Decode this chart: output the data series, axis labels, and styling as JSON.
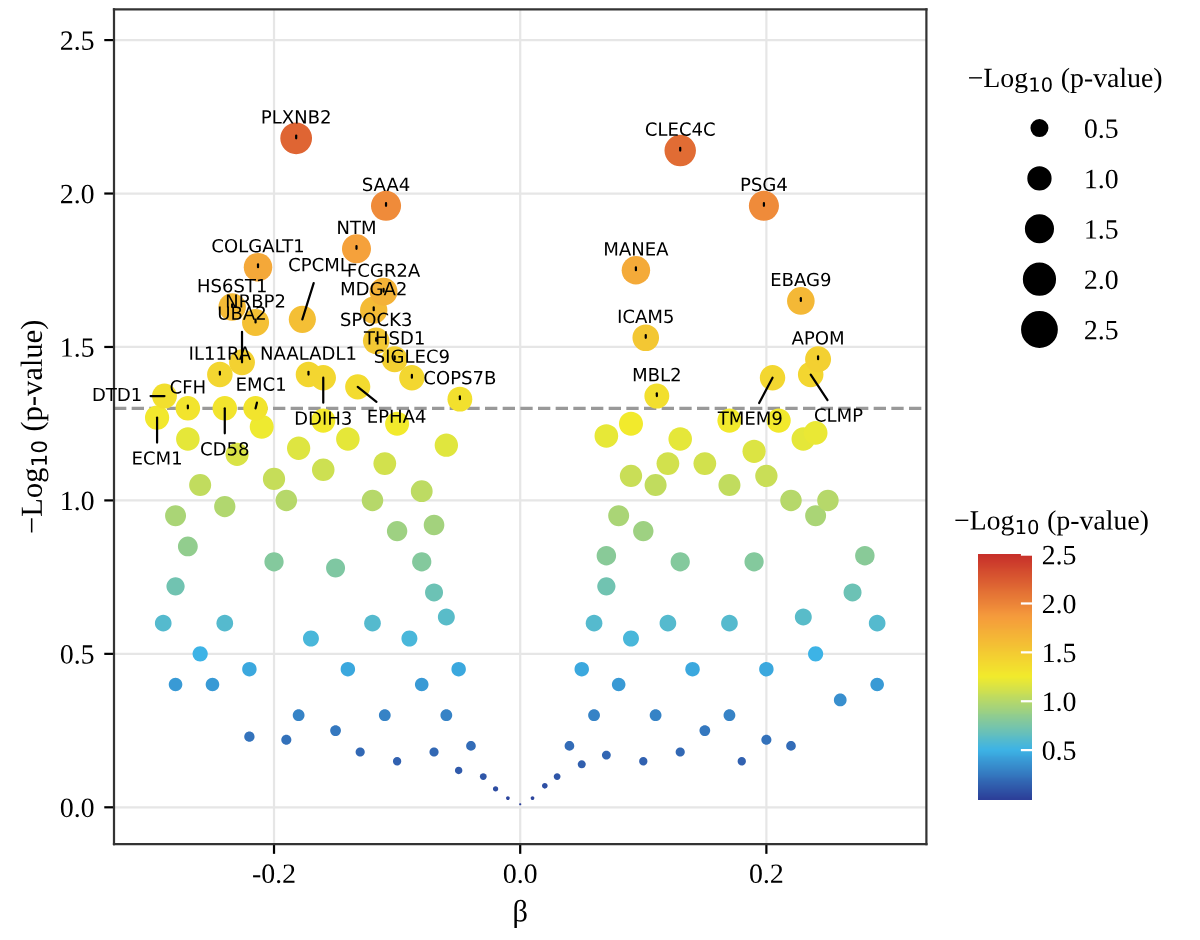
{
  "chart_data": {
    "type": "bubble",
    "xlabel": "β",
    "ylabel": "−Log$_{10}$ (p-value)",
    "legend_title": "−Log$_{10}$ (p-value)",
    "clabel": "−Log$_{10}$ (p-value)",
    "xlim": [
      -0.33,
      0.33
    ],
    "ylim": [
      -0.12,
      2.6
    ],
    "xticks": [
      {
        "value": -0.2,
        "label": "-0.2"
      },
      {
        "value": 0.0,
        "label": "0.0"
      },
      {
        "value": 0.2,
        "label": "0.2"
      }
    ],
    "yticks": [
      {
        "value": 0.0,
        "label": "0.0"
      },
      {
        "value": 0.5,
        "label": "0.5"
      },
      {
        "value": 1.0,
        "label": "1.0"
      },
      {
        "value": 1.5,
        "label": "1.5"
      },
      {
        "value": 2.0,
        "label": "2.0"
      },
      {
        "value": 2.5,
        "label": "2.5"
      }
    ],
    "grid": true,
    "marker": "circle",
    "size_legend": [
      {
        "value": 0.5,
        "label": "0.5"
      },
      {
        "value": 1.0,
        "label": "1.0"
      },
      {
        "value": 1.5,
        "label": "1.5"
      },
      {
        "value": 2.0,
        "label": "2.0"
      },
      {
        "value": 2.5,
        "label": "2.5"
      }
    ],
    "clim": [
      0.0,
      2.5
    ],
    "cticks": [
      {
        "value": 0.5,
        "label": "0.5"
      },
      {
        "value": 1.0,
        "label": "1.0"
      },
      {
        "value": 1.5,
        "label": "1.5"
      },
      {
        "value": 2.0,
        "label": "2.0"
      },
      {
        "value": 2.5,
        "label": "2.5"
      }
    ],
    "ref_lines": [
      {
        "axis": "y",
        "value": 1.3,
        "color": "#999999",
        "line_style": "dashed"
      }
    ],
    "series": [
      {
        "x": [
          0,
          -0.01,
          0.01,
          -0.02,
          0.02,
          -0.03,
          0.03,
          -0.05,
          0.05,
          -0.04,
          0.04,
          -0.07,
          0.07,
          -0.1,
          0.1,
          -0.13,
          0.13,
          -0.06,
          0.06,
          -0.08,
          0.08,
          -0.05,
          0.05,
          -0.11,
          0.11,
          -0.15,
          0.15,
          -0.18,
          0.17,
          -0.22,
          -0.19,
          0.18,
          0.2,
          0.22,
          -0.25,
          0.26,
          -0.28,
          0.29,
          -0.29,
          0.29,
          -0.26,
          0.24,
          -0.22,
          0.2,
          -0.14,
          0.14,
          -0.09,
          0.09,
          -0.06,
          0.06,
          -0.07,
          0.07,
          -0.12,
          0.12,
          -0.17,
          0.17,
          -0.24,
          0.23,
          -0.28,
          0.27,
          -0.27,
          0.28,
          -0.2,
          0.19,
          -0.15,
          0.13,
          -0.08,
          0.07,
          -0.1,
          0.1,
          -0.07,
          0.08,
          -0.28,
          0.24,
          -0.24,
          0.22,
          -0.19,
          0.17,
          -0.12,
          0.11,
          -0.08,
          0.09,
          -0.26,
          0.25,
          -0.2,
          0.2,
          -0.16,
          0.15,
          -0.11,
          0.12,
          -0.23,
          0.13,
          -0.18,
          0.19,
          -0.14,
          0.23,
          -0.06,
          0.07,
          -0.27,
          0.24,
          -0.21,
          0.09,
          -0.16,
          0.17,
          -0.1,
          0.21,
          -0.182,
          -0.109,
          -0.133,
          -0.213,
          -0.177,
          -0.234,
          -0.215,
          -0.119,
          -0.111,
          -0.117,
          -0.102,
          -0.088,
          -0.244,
          -0.226,
          -0.289,
          -0.172,
          -0.16,
          -0.132,
          -0.049,
          -0.27,
          -0.24,
          -0.215,
          -0.295,
          0.13,
          0.198,
          0.094,
          0.228,
          0.102,
          0.242,
          0.111,
          0.205,
          0.236
        ],
        "values": [
          0.01,
          0.03,
          0.03,
          0.06,
          0.07,
          0.1,
          0.1,
          0.12,
          0.14,
          0.2,
          0.2,
          0.18,
          0.17,
          0.15,
          0.15,
          0.18,
          0.18,
          0.3,
          0.3,
          0.4,
          0.4,
          0.45,
          0.45,
          0.3,
          0.3,
          0.25,
          0.25,
          0.3,
          0.3,
          0.23,
          0.22,
          0.15,
          0.22,
          0.2,
          0.4,
          0.35,
          0.4,
          0.4,
          0.6,
          0.6,
          0.5,
          0.5,
          0.45,
          0.45,
          0.45,
          0.45,
          0.55,
          0.55,
          0.62,
          0.6,
          0.7,
          0.72,
          0.6,
          0.6,
          0.55,
          0.6,
          0.6,
          0.62,
          0.72,
          0.7,
          0.85,
          0.82,
          0.8,
          0.8,
          0.78,
          0.8,
          0.8,
          0.82,
          0.9,
          0.9,
          0.92,
          0.95,
          0.95,
          0.95,
          0.98,
          1.0,
          1.0,
          1.05,
          1.0,
          1.05,
          1.03,
          1.08,
          1.05,
          1.0,
          1.07,
          1.08,
          1.1,
          1.12,
          1.12,
          1.12,
          1.15,
          1.2,
          1.17,
          1.16,
          1.2,
          1.2,
          1.18,
          1.21,
          1.2,
          1.22,
          1.24,
          1.25,
          1.26,
          1.26,
          1.25,
          1.26,
          2.18,
          1.96,
          1.82,
          1.76,
          1.59,
          1.63,
          1.58,
          1.62,
          1.68,
          1.52,
          1.46,
          1.4,
          1.41,
          1.45,
          1.34,
          1.41,
          1.4,
          1.37,
          1.33,
          1.3,
          1.3,
          1.3,
          1.27,
          2.14,
          1.96,
          1.75,
          1.65,
          1.53,
          1.46,
          1.34,
          1.4,
          1.41
        ],
        "sizes": [
          0.01,
          0.03,
          0.03,
          0.06,
          0.07,
          0.1,
          0.1,
          0.12,
          0.14,
          0.2,
          0.2,
          0.18,
          0.17,
          0.15,
          0.15,
          0.18,
          0.18,
          0.3,
          0.3,
          0.4,
          0.4,
          0.45,
          0.45,
          0.3,
          0.3,
          0.25,
          0.25,
          0.3,
          0.3,
          0.23,
          0.22,
          0.15,
          0.22,
          0.2,
          0.4,
          0.35,
          0.4,
          0.4,
          0.6,
          0.6,
          0.5,
          0.5,
          0.45,
          0.45,
          0.45,
          0.45,
          0.55,
          0.55,
          0.62,
          0.6,
          0.7,
          0.72,
          0.6,
          0.6,
          0.55,
          0.6,
          0.6,
          0.62,
          0.72,
          0.7,
          0.85,
          0.82,
          0.8,
          0.8,
          0.78,
          0.8,
          0.8,
          0.82,
          0.9,
          0.9,
          0.92,
          0.95,
          0.95,
          0.95,
          0.98,
          1.0,
          1.0,
          1.05,
          1.0,
          1.05,
          1.03,
          1.08,
          1.05,
          1.0,
          1.07,
          1.08,
          1.1,
          1.12,
          1.12,
          1.12,
          1.15,
          1.2,
          1.17,
          1.16,
          1.2,
          1.2,
          1.18,
          1.21,
          1.2,
          1.22,
          1.24,
          1.25,
          1.26,
          1.26,
          1.25,
          1.26,
          2.18,
          1.96,
          1.82,
          1.76,
          1.59,
          1.63,
          1.58,
          1.62,
          1.68,
          1.52,
          1.46,
          1.4,
          1.41,
          1.45,
          1.34,
          1.41,
          1.4,
          1.37,
          1.33,
          1.3,
          1.3,
          1.3,
          1.27,
          2.14,
          1.96,
          1.75,
          1.65,
          1.53,
          1.46,
          1.34,
          1.4,
          1.41
        ]
      }
    ],
    "annotations": [
      {
        "text": "PLXNB2",
        "x": -0.182,
        "y": 2.18
      },
      {
        "text": "SAA4",
        "x": -0.109,
        "y": 1.96
      },
      {
        "text": "NTM",
        "x": -0.133,
        "y": 1.82
      },
      {
        "text": "COLGALT1",
        "x": -0.213,
        "y": 1.76
      },
      {
        "text": "CPCML",
        "x": -0.177,
        "y": 1.59
      },
      {
        "text": "HS6ST1",
        "x": -0.234,
        "y": 1.63
      },
      {
        "text": "NRBP2",
        "x": -0.215,
        "y": 1.58
      },
      {
        "text": "MDGA2",
        "x": -0.119,
        "y": 1.62
      },
      {
        "text": "FCGR2A",
        "x": -0.111,
        "y": 1.68
      },
      {
        "text": "SPOCK3",
        "x": -0.117,
        "y": 1.52
      },
      {
        "text": "THSD1",
        "x": -0.102,
        "y": 1.46
      },
      {
        "text": "SIGLEC9",
        "x": -0.088,
        "y": 1.4
      },
      {
        "text": "IL11RA",
        "x": -0.244,
        "y": 1.41
      },
      {
        "text": "UBA2",
        "x": -0.226,
        "y": 1.45
      },
      {
        "text": "DTD1",
        "x": -0.289,
        "y": 1.34
      },
      {
        "text": "NAALADL1",
        "x": -0.172,
        "y": 1.41
      },
      {
        "text": "DDIH3",
        "x": -0.16,
        "y": 1.4
      },
      {
        "text": "EPHA4",
        "x": -0.132,
        "y": 1.37
      },
      {
        "text": "COPS7B",
        "x": -0.049,
        "y": 1.33
      },
      {
        "text": "CFH",
        "x": -0.27,
        "y": 1.3
      },
      {
        "text": "CD58",
        "x": -0.24,
        "y": 1.3
      },
      {
        "text": "EMC1",
        "x": -0.215,
        "y": 1.3
      },
      {
        "text": "ECM1",
        "x": -0.295,
        "y": 1.27
      },
      {
        "text": "CLEC4C",
        "x": 0.13,
        "y": 2.14
      },
      {
        "text": "PSG4",
        "x": 0.198,
        "y": 1.96
      },
      {
        "text": "MANEA",
        "x": 0.094,
        "y": 1.75
      },
      {
        "text": "EBAG9",
        "x": 0.228,
        "y": 1.65
      },
      {
        "text": "ICAM5",
        "x": 0.102,
        "y": 1.53
      },
      {
        "text": "APOM",
        "x": 0.242,
        "y": 1.46
      },
      {
        "text": "MBL2",
        "x": 0.111,
        "y": 1.34
      },
      {
        "text": "TMEM9",
        "x": 0.205,
        "y": 1.4
      },
      {
        "text": "CLMP",
        "x": 0.236,
        "y": 1.41
      }
    ]
  }
}
